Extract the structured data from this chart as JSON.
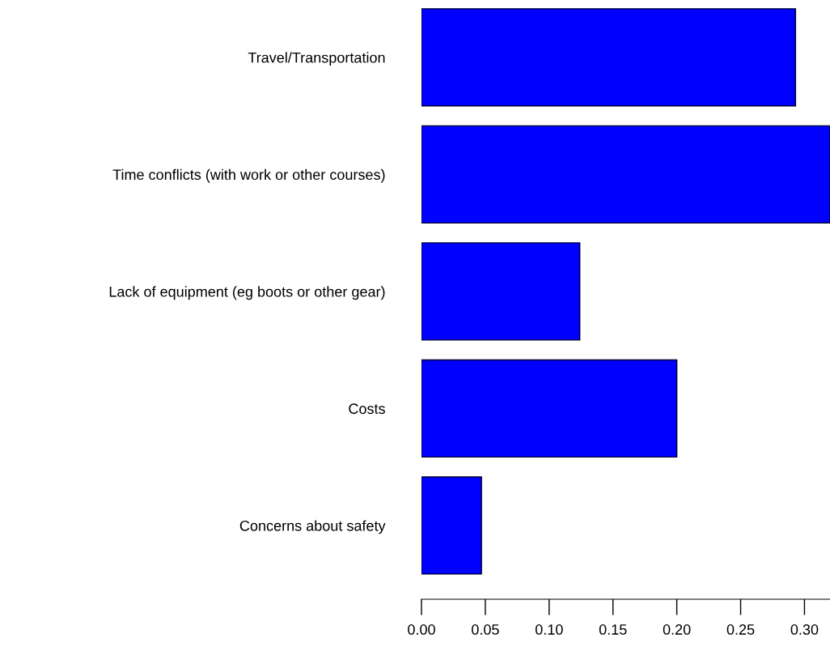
{
  "chart_data": {
    "type": "bar",
    "orientation": "horizontal",
    "categories": [
      "Travel/Transportation",
      "Time conflicts (with work or other courses)",
      "Lack of equipment (eg boots or other gear)",
      "Costs",
      "Concerns about safety"
    ],
    "values": [
      0.293,
      0.32,
      0.124,
      0.2,
      0.047
    ],
    "color": "#0000ff",
    "xlim": [
      0,
      0.32
    ],
    "xticks": [
      {
        "value": 0,
        "label": "0.00"
      },
      {
        "value": 0.05,
        "label": "0.05"
      },
      {
        "value": 0.1,
        "label": "0.10"
      },
      {
        "value": 0.15,
        "label": "0.15"
      },
      {
        "value": 0.2,
        "label": "0.20"
      },
      {
        "value": 0.25,
        "label": "0.25"
      },
      {
        "value": 0.3,
        "label": "0.30"
      }
    ],
    "grid": false
  }
}
